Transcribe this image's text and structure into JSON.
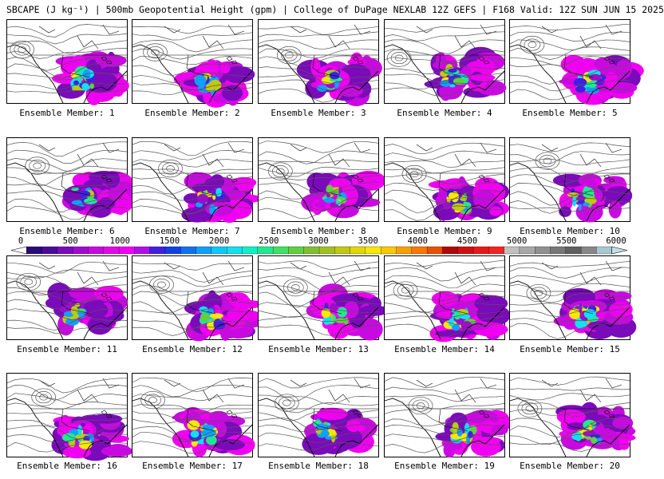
{
  "title": "SBCAPE (J kg⁻¹) | 500mb Geopotential Height (gpm) | College of DuPage NEXLAB 12Z GEFS | F168 Valid: 12Z SUN JUN 15 2025",
  "member_prefix": "Ensemble Member: ",
  "members": [
    "Ensemble Member: 1",
    "Ensemble Member: 2",
    "Ensemble Member: 3",
    "Ensemble Member: 4",
    "Ensemble Member: 5",
    "Ensemble Member: 6",
    "Ensemble Member: 7",
    "Ensemble Member: 8",
    "Ensemble Member: 9",
    "Ensemble Member: 10",
    "Ensemble Member: 11",
    "Ensemble Member: 12",
    "Ensemble Member: 13",
    "Ensemble Member: 14",
    "Ensemble Member: 15",
    "Ensemble Member: 16",
    "Ensemble Member: 17",
    "Ensemble Member: 18",
    "Ensemble Member: 19",
    "Ensemble Member: 20"
  ],
  "colorbar": {
    "ticks": [
      "0",
      "500",
      "1000",
      "1500",
      "2000",
      "2500",
      "3000",
      "3500",
      "4000",
      "4500",
      "5000",
      "5500",
      "6000"
    ],
    "min": 0,
    "max": 6000,
    "colors": [
      "#ffffff",
      "#2a0a7a",
      "#4b0a9a",
      "#7a0aba",
      "#a00ad0",
      "#c80ae0",
      "#e00ae8",
      "#f000f0",
      "#b010e8",
      "#4020e0",
      "#1040e8",
      "#1070f0",
      "#10a0f8",
      "#10c8f8",
      "#10e0f0",
      "#10f0c8",
      "#20e890",
      "#40e060",
      "#60d040",
      "#80c030",
      "#a0c020",
      "#c0c810",
      "#e0d800",
      "#f8e800",
      "#f8c800",
      "#f8a000",
      "#f87800",
      "#e85000",
      "#b00808",
      "#d01010",
      "#e81818",
      "#f82020",
      "#c0c0c0",
      "#a8a8a8",
      "#909090",
      "#787878",
      "#606060",
      "#888888",
      "#a8c8d0",
      "#c0e0e8"
    ]
  }
}
